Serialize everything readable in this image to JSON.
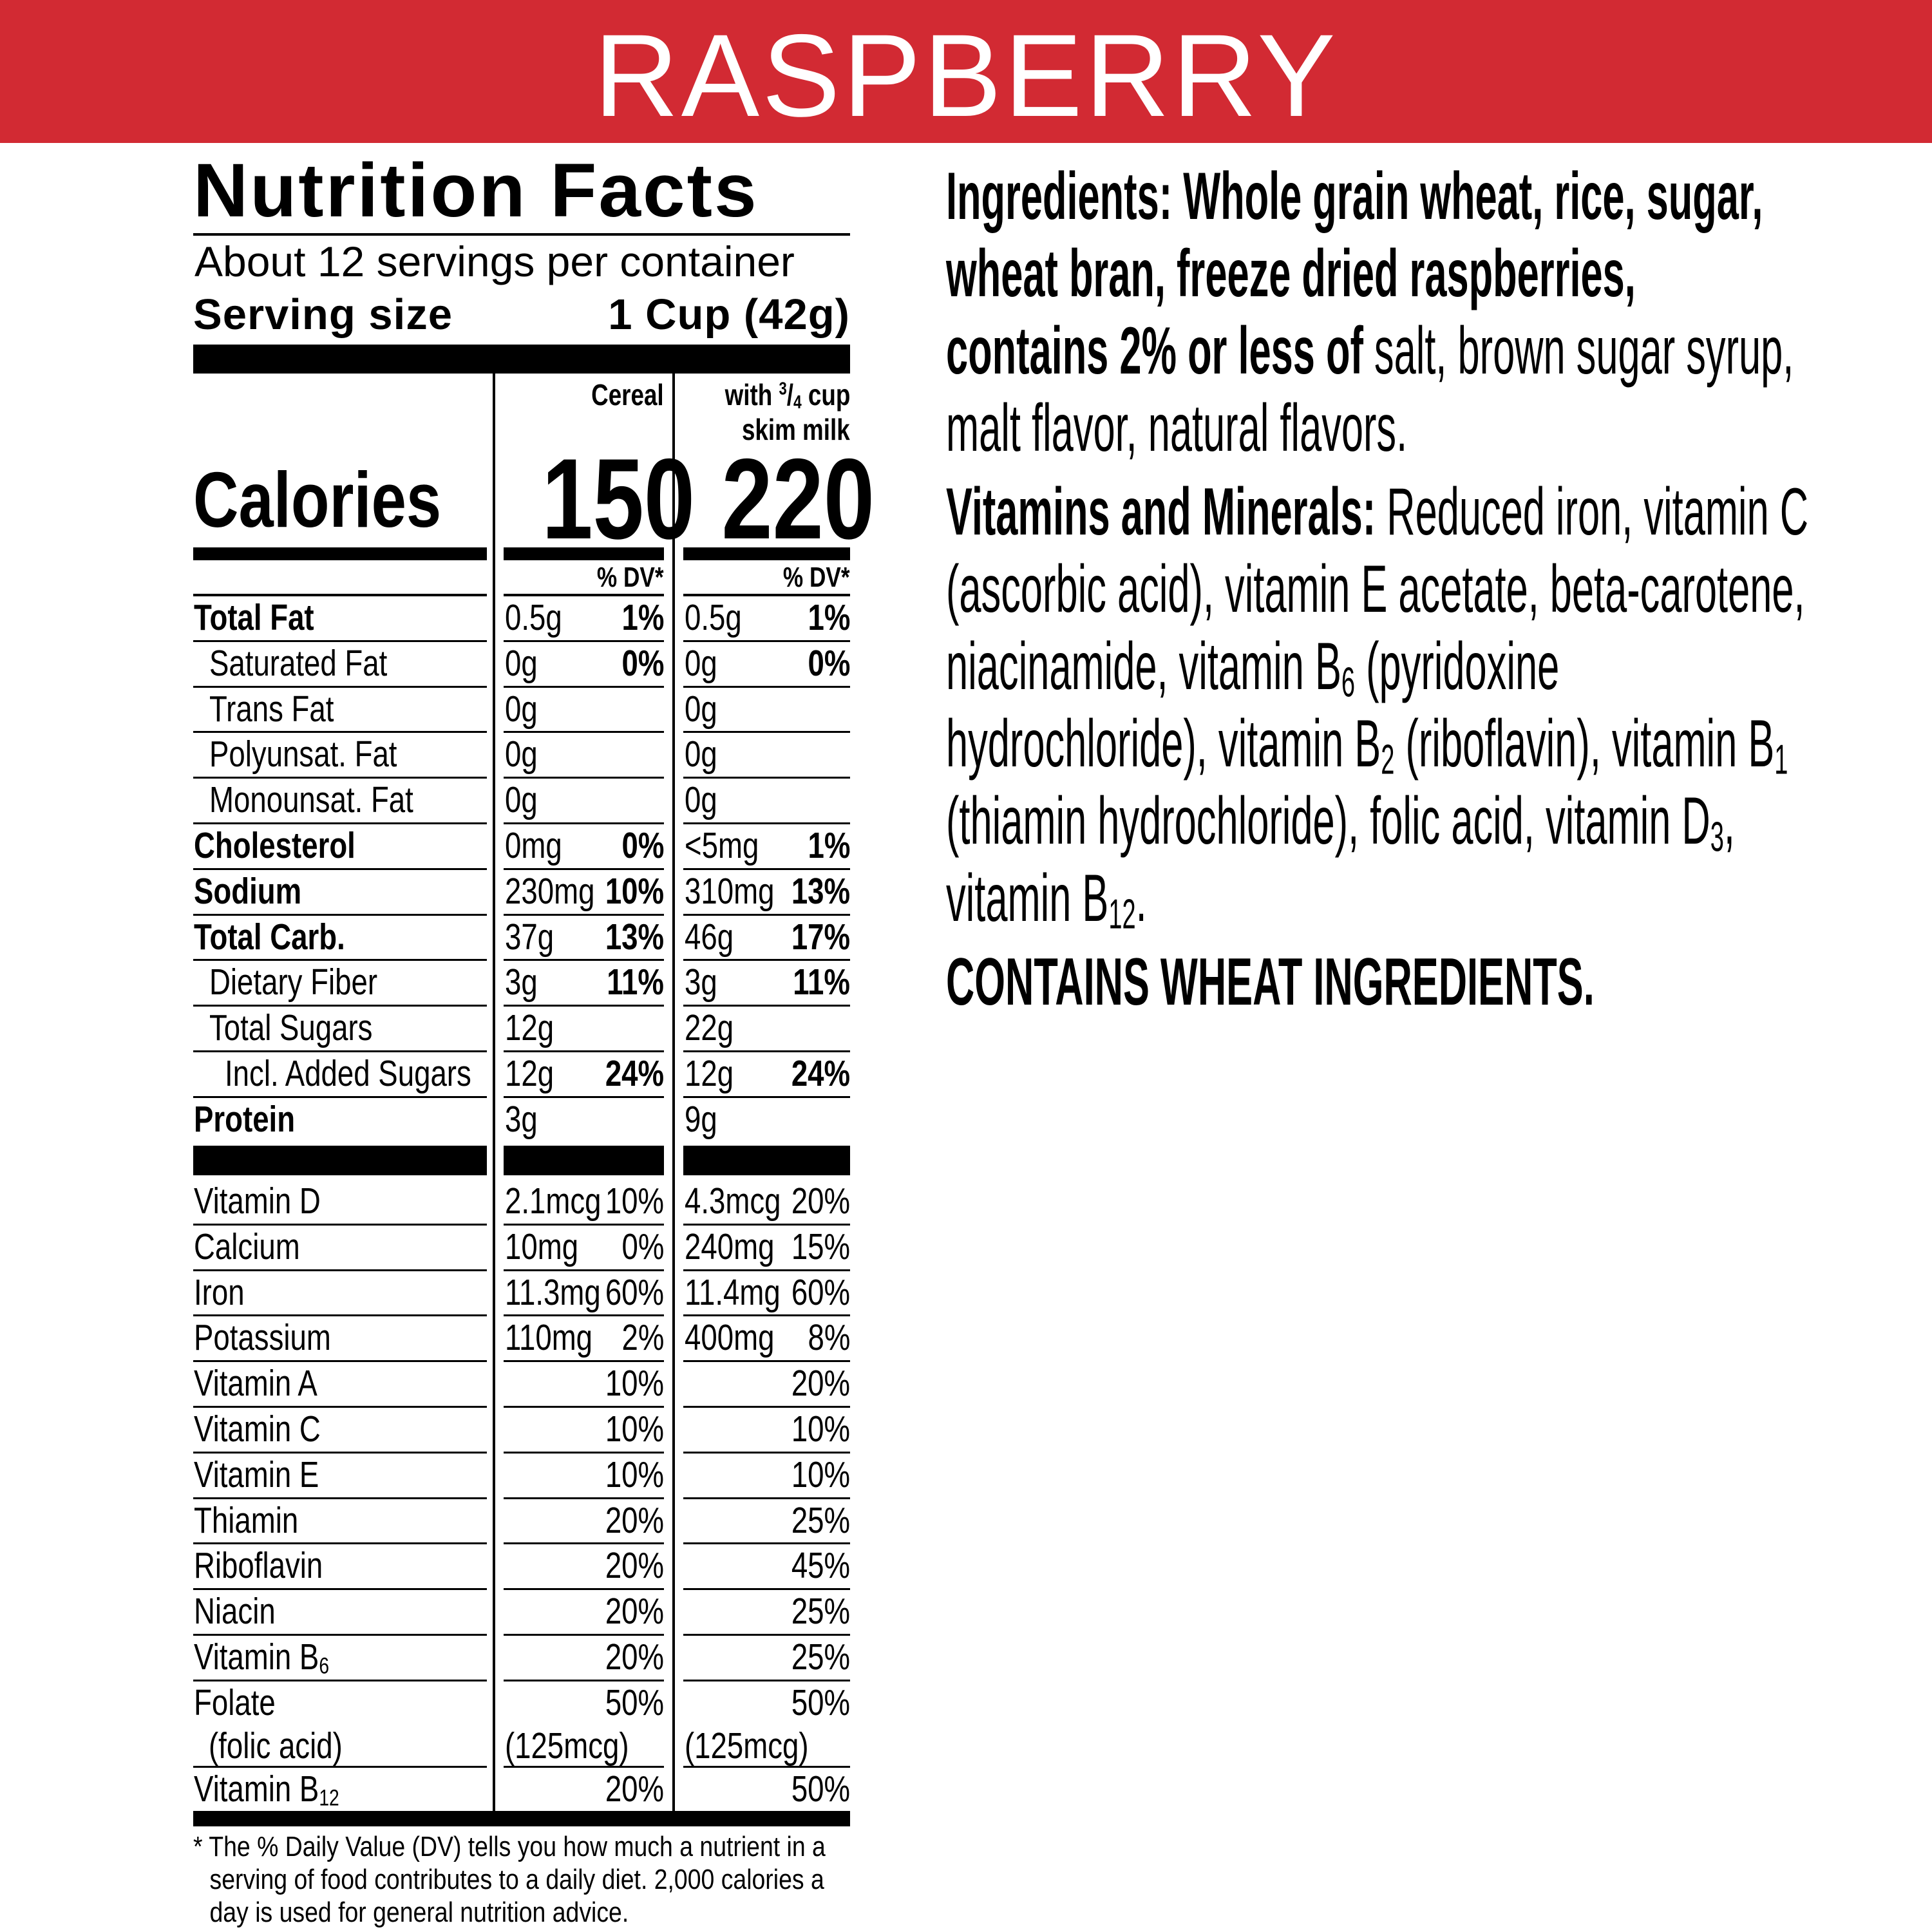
{
  "colors": {
    "banner": "#d22a33",
    "text": "#000000",
    "banner_text": "#ffffff"
  },
  "banner": {
    "title": "RASPBERRY"
  },
  "nutrition": {
    "title": "Nutrition Facts",
    "servings_per_container": "About 12 servings per container",
    "serving_size_label": "Serving size",
    "serving_size_value": "1 Cup (42g)",
    "col_cereal": "Cereal",
    "col_milk_line1_pre": "with ",
    "col_milk_fraction_num": "3",
    "col_milk_fraction_den": "4",
    "col_milk_line1_post": " cup",
    "col_milk_line2": "skim milk",
    "calories_label": "Calories",
    "calories_cereal": "150",
    "calories_milk": "220",
    "dv_header": "% DV*",
    "nutrients": [
      {
        "name": "Total Fat",
        "bold": true,
        "indent": 0,
        "cereal_amt": "0.5g",
        "cereal_dv": "1%",
        "milk_amt": "0.5g",
        "milk_dv": "1%"
      },
      {
        "name": "Saturated Fat",
        "bold": false,
        "indent": 1,
        "cereal_amt": "0g",
        "cereal_dv": "0%",
        "milk_amt": "0g",
        "milk_dv": "0%"
      },
      {
        "name": "Trans Fat",
        "bold": false,
        "indent": 1,
        "cereal_amt": "0g",
        "cereal_dv": "",
        "milk_amt": "0g",
        "milk_dv": ""
      },
      {
        "name": "Polyunsat. Fat",
        "bold": false,
        "indent": 1,
        "cereal_amt": "0g",
        "cereal_dv": "",
        "milk_amt": "0g",
        "milk_dv": ""
      },
      {
        "name": "Monounsat. Fat",
        "bold": false,
        "indent": 1,
        "cereal_amt": "0g",
        "cereal_dv": "",
        "milk_amt": "0g",
        "milk_dv": ""
      },
      {
        "name": "Cholesterol",
        "bold": true,
        "indent": 0,
        "cereal_amt": "0mg",
        "cereal_dv": "0%",
        "milk_amt": "<5mg",
        "milk_dv": "1%"
      },
      {
        "name": "Sodium",
        "bold": true,
        "indent": 0,
        "cereal_amt": "230mg",
        "cereal_dv": "10%",
        "milk_amt": "310mg",
        "milk_dv": "13%"
      },
      {
        "name": "Total Carb.",
        "bold": true,
        "indent": 0,
        "cereal_amt": "37g",
        "cereal_dv": "13%",
        "milk_amt": "46g",
        "milk_dv": "17%"
      },
      {
        "name": "Dietary Fiber",
        "bold": false,
        "indent": 1,
        "cereal_amt": "3g",
        "cereal_dv": "11%",
        "milk_amt": "3g",
        "milk_dv": "11%"
      },
      {
        "name": "Total Sugars",
        "bold": false,
        "indent": 1,
        "cereal_amt": "12g",
        "cereal_dv": "",
        "milk_amt": "22g",
        "milk_dv": ""
      },
      {
        "name": "Incl. Added Sugars",
        "bold": false,
        "indent": 2,
        "cereal_amt": "12g",
        "cereal_dv": "24%",
        "milk_amt": "12g",
        "milk_dv": "24%"
      },
      {
        "name": "Protein",
        "bold": true,
        "indent": 0,
        "cereal_amt": "3g",
        "cereal_dv": "",
        "milk_amt": "9g",
        "milk_dv": ""
      }
    ],
    "vitamins": [
      {
        "name": "Vitamin D",
        "sub": "",
        "cereal_amt": "2.1mcg",
        "cereal_dv": "10%",
        "milk_amt": "4.3mcg",
        "milk_dv": "20%"
      },
      {
        "name": "Calcium",
        "sub": "",
        "cereal_amt": "10mg",
        "cereal_dv": "0%",
        "milk_amt": "240mg",
        "milk_dv": "15%"
      },
      {
        "name": "Iron",
        "sub": "",
        "cereal_amt": "11.3mg",
        "cereal_dv": "60%",
        "milk_amt": "11.4mg",
        "milk_dv": "60%"
      },
      {
        "name": "Potassium",
        "sub": "",
        "cereal_amt": "110mg",
        "cereal_dv": "2%",
        "milk_amt": "400mg",
        "milk_dv": "8%"
      },
      {
        "name": "Vitamin A",
        "sub": "",
        "cereal_amt": "",
        "cereal_dv": "10%",
        "milk_amt": "",
        "milk_dv": "20%"
      },
      {
        "name": "Vitamin C",
        "sub": "",
        "cereal_amt": "",
        "cereal_dv": "10%",
        "milk_amt": "",
        "milk_dv": "10%"
      },
      {
        "name": "Vitamin E",
        "sub": "",
        "cereal_amt": "",
        "cereal_dv": "10%",
        "milk_amt": "",
        "milk_dv": "10%"
      },
      {
        "name": "Thiamin",
        "sub": "",
        "cereal_amt": "",
        "cereal_dv": "20%",
        "milk_amt": "",
        "milk_dv": "25%"
      },
      {
        "name": "Riboflavin",
        "sub": "",
        "cereal_amt": "",
        "cereal_dv": "20%",
        "milk_amt": "",
        "milk_dv": "45%"
      },
      {
        "name": "Niacin",
        "sub": "",
        "cereal_amt": "",
        "cereal_dv": "20%",
        "milk_amt": "",
        "milk_dv": "25%"
      },
      {
        "name": "Vitamin B",
        "sub": "6",
        "cereal_amt": "",
        "cereal_dv": "20%",
        "milk_amt": "",
        "milk_dv": "25%"
      },
      {
        "name": "Folate",
        "name2": "(folic acid)",
        "sub": "",
        "cereal_amt": "(125mcg)",
        "cereal_dv": "50%",
        "milk_amt": "(125mcg)",
        "milk_dv": "50%"
      },
      {
        "name": "Vitamin B",
        "sub": "12",
        "cereal_amt": "",
        "cereal_dv": "20%",
        "milk_amt": "",
        "milk_dv": "50%"
      }
    ],
    "footnote": "* The % Daily Value (DV) tells you how much a nutrient in a serving of food contributes to a daily diet. 2,000 calories a day is used for general nutrition advice."
  },
  "ingredients": {
    "label": "Ingredients:",
    "text": " Whole grain wheat, rice, sugar, wheat bran, freeze dried raspberries, contains 2% or less of",
    "text_regular": " salt, brown sugar syrup, malt flavor, natural flavors.",
    "vitamins_label": "Vitamins and Minerals:",
    "vitamins_parts": [
      {
        "t": " Reduced iron, vitamin C (ascorbic acid), vitamin E acetate, beta-carotene, niacinamide, vitamin B"
      },
      {
        "t": "6",
        "sub": true
      },
      {
        "t": " (pyridoxine hydrochloride), vitamin B"
      },
      {
        "t": "2",
        "sub": true
      },
      {
        "t": " (riboflavin), vitamin B"
      },
      {
        "t": "1",
        "sub": true
      },
      {
        "t": " (thiamin hydrochloride), folic acid, vitamin D"
      },
      {
        "t": "3",
        "sub": true
      },
      {
        "t": ", vitamin B"
      },
      {
        "t": "12",
        "sub": true
      },
      {
        "t": "."
      }
    ],
    "allergen": "CONTAINS WHEAT INGREDIENTS."
  }
}
